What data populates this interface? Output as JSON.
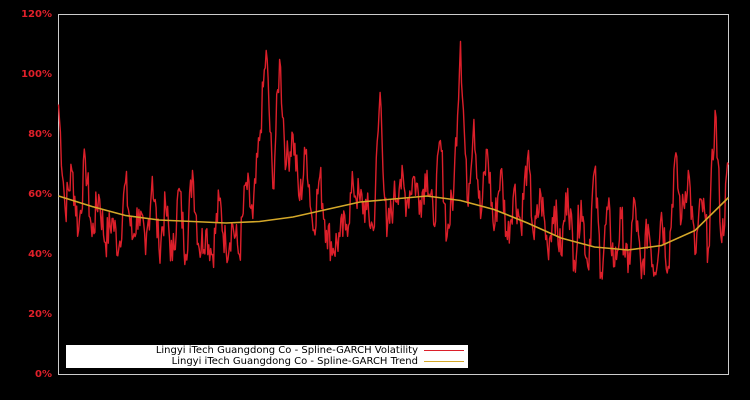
{
  "chart_data": {
    "type": "line",
    "title": "",
    "xlabel": "",
    "ylabel": "",
    "ylim": [
      0,
      120
    ],
    "y_tick_labels": [
      "0%",
      "20%",
      "40%",
      "60%",
      "80%",
      "100%",
      "120%"
    ],
    "y_ticks": [
      0,
      20,
      40,
      60,
      80,
      100,
      120
    ],
    "grid": false,
    "legend_position": "lower left",
    "x_tick_labels": [],
    "series": [
      {
        "name": "Lingyi iTech Guangdong Co - Spline-GARCH Volatility",
        "color": "#dc1f2a",
        "x": [
          0,
          0.01,
          0.02,
          0.03,
          0.04,
          0.05,
          0.06,
          0.07,
          0.08,
          0.09,
          0.1,
          0.11,
          0.12,
          0.13,
          0.14,
          0.15,
          0.16,
          0.17,
          0.18,
          0.19,
          0.2,
          0.21,
          0.22,
          0.23,
          0.24,
          0.25,
          0.26,
          0.27,
          0.28,
          0.29,
          0.3,
          0.31,
          0.32,
          0.33,
          0.34,
          0.35,
          0.36,
          0.37,
          0.38,
          0.39,
          0.4,
          0.41,
          0.42,
          0.43,
          0.44,
          0.45,
          0.46,
          0.47,
          0.48,
          0.49,
          0.5,
          0.51,
          0.52,
          0.53,
          0.54,
          0.55,
          0.56,
          0.57,
          0.58,
          0.59,
          0.6,
          0.61,
          0.62,
          0.63,
          0.64,
          0.65,
          0.66,
          0.67,
          0.68,
          0.69,
          0.7,
          0.71,
          0.72,
          0.73,
          0.74,
          0.75,
          0.76,
          0.77,
          0.78,
          0.79,
          0.8,
          0.81,
          0.82,
          0.83,
          0.84,
          0.85,
          0.86,
          0.87,
          0.88,
          0.89,
          0.9,
          0.91,
          0.92,
          0.93,
          0.94,
          0.95,
          0.96,
          0.97,
          0.98,
          0.99,
          1.0
        ],
        "values": [
          90,
          55,
          68,
          48,
          72,
          46,
          60,
          44,
          52,
          42,
          64,
          45,
          55,
          40,
          66,
          42,
          56,
          38,
          62,
          40,
          68,
          42,
          48,
          40,
          58,
          42,
          50,
          40,
          64,
          52,
          78,
          108,
          62,
          105,
          70,
          80,
          58,
          75,
          48,
          66,
          48,
          42,
          46,
          50,
          63,
          58,
          55,
          48,
          94,
          46,
          58,
          65,
          58,
          66,
          58,
          68,
          50,
          78,
          46,
          62,
          111,
          58,
          85,
          52,
          75,
          48,
          68,
          45,
          62,
          50,
          72,
          45,
          60,
          42,
          56,
          40,
          62,
          38,
          58,
          36,
          68,
          34,
          55,
          36,
          52,
          34,
          58,
          32,
          50,
          34,
          54,
          36,
          72,
          52,
          68,
          40,
          58,
          42,
          88,
          44,
          70
        ],
        "value_range": [
          31,
          111
        ]
      },
      {
        "name": "Lingyi iTech Guangdong Co - Spline-GARCH Trend",
        "color": "#d4a829",
        "x": [
          0,
          0.05,
          0.1,
          0.15,
          0.2,
          0.25,
          0.3,
          0.35,
          0.4,
          0.45,
          0.5,
          0.55,
          0.6,
          0.65,
          0.7,
          0.75,
          0.8,
          0.85,
          0.9,
          0.95,
          1.0
        ],
        "values": [
          59.5,
          56,
          53,
          51.5,
          51,
          50.5,
          51,
          52.5,
          55,
          57.5,
          58.5,
          59.5,
          58,
          55,
          50.5,
          45.5,
          42.5,
          41.5,
          43,
          48,
          59
        ]
      }
    ]
  },
  "legend": {
    "items": [
      {
        "label": "Lingyi iTech Guangdong Co - Spline-GARCH Volatility",
        "color": "#dc1f2a"
      },
      {
        "label": "Lingyi iTech Guangdong Co - Spline-GARCH Trend",
        "color": "#d4a829"
      }
    ]
  },
  "colors": {
    "background": "#000000",
    "axis_frame": "#cccccc",
    "tick_label": "#e0202a",
    "legend_bg": "#ffffff"
  }
}
